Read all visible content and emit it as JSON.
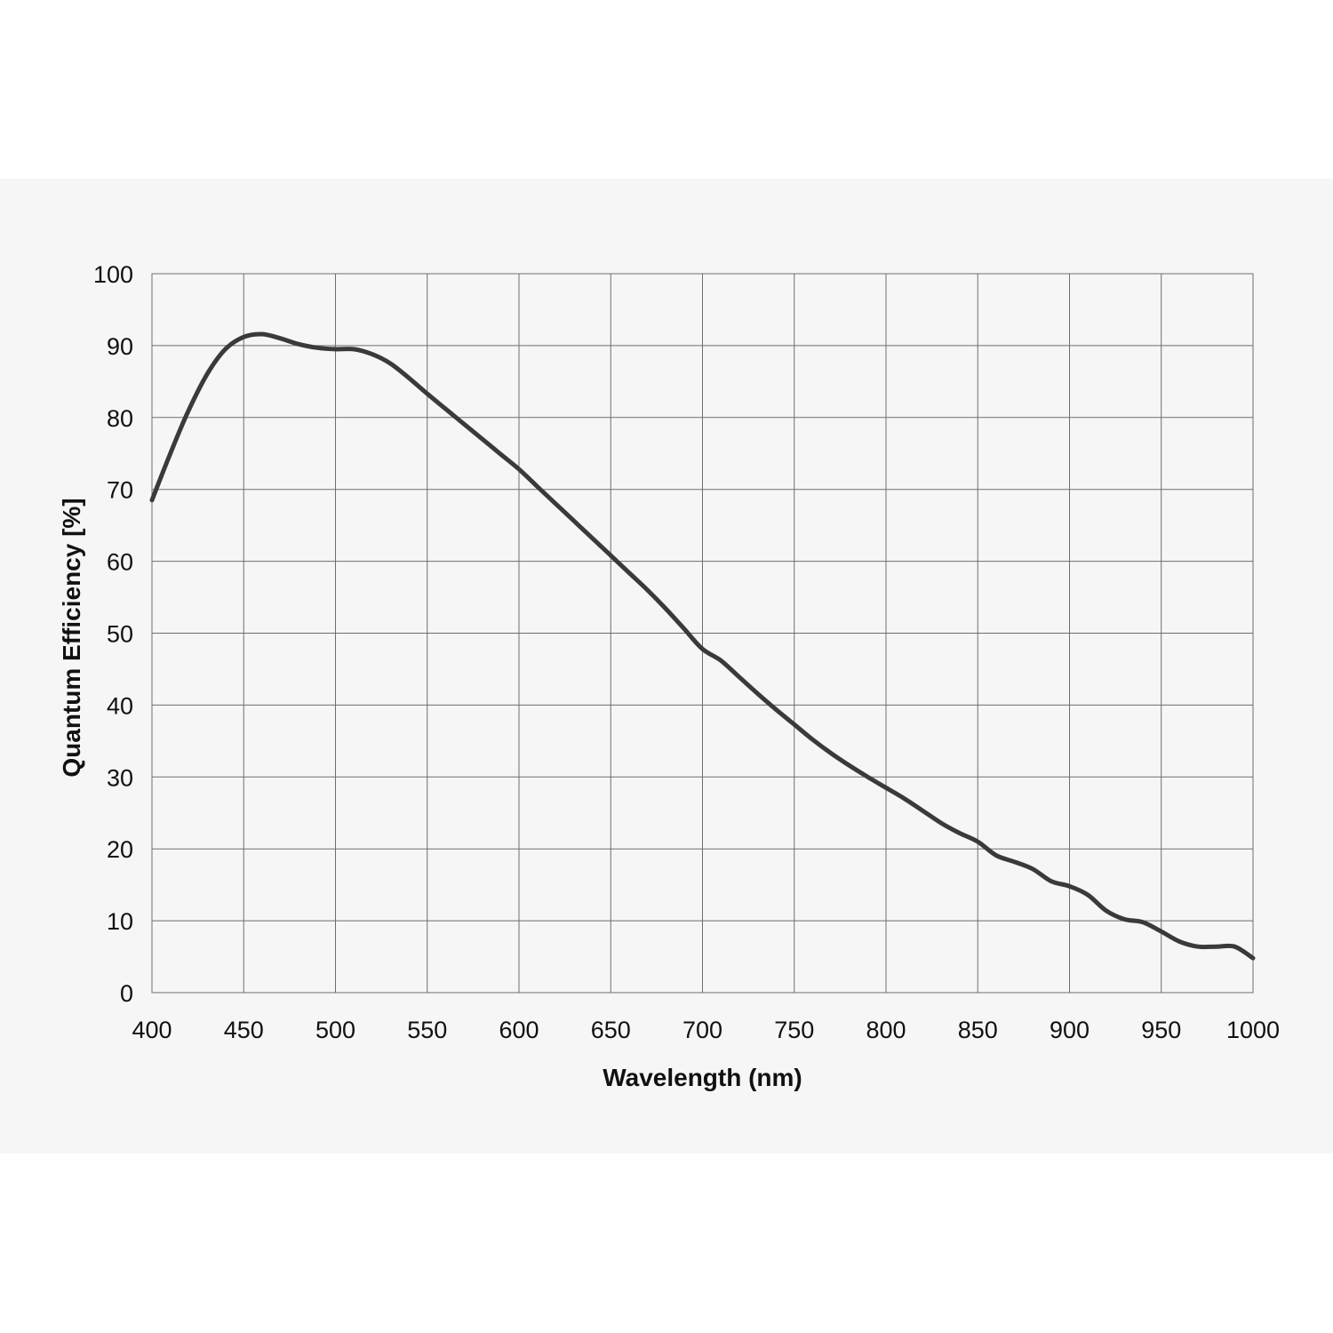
{
  "chart_data": {
    "type": "line",
    "xlabel": "Wavelength (nm)",
    "ylabel": "Quantum Efficiency [%]",
    "xlim": [
      400,
      1000
    ],
    "ylim": [
      0,
      100
    ],
    "x_ticks": [
      "400",
      "450",
      "500",
      "550",
      "600",
      "650",
      "700",
      "750",
      "800",
      "850",
      "900",
      "950",
      "1000"
    ],
    "y_ticks": [
      "0",
      "10",
      "20",
      "30",
      "40",
      "50",
      "60",
      "70",
      "80",
      "90",
      "100"
    ],
    "grid": true,
    "legend": "none",
    "line_color": "#3a3a3a",
    "series": [
      {
        "x": [
          400,
          410,
          420,
          430,
          440,
          450,
          460,
          470,
          480,
          490,
          500,
          510,
          520,
          530,
          540,
          550,
          560,
          570,
          580,
          590,
          600,
          610,
          620,
          630,
          640,
          650,
          660,
          670,
          680,
          690,
          700,
          710,
          720,
          730,
          740,
          750,
          760,
          770,
          780,
          790,
          800,
          810,
          820,
          830,
          840,
          850,
          860,
          870,
          880,
          890,
          900,
          910,
          920,
          930,
          940,
          950,
          960,
          970,
          980,
          990,
          1000
        ],
        "y": [
          68.5,
          75,
          81,
          86,
          89.5,
          91.2,
          91.6,
          91,
          90.2,
          89.7,
          89.5,
          89.5,
          88.8,
          87.5,
          85.5,
          83.3,
          81.2,
          79.1,
          77,
          74.9,
          72.8,
          70.4,
          68,
          65.6,
          63.2,
          60.8,
          58.4,
          56,
          53.4,
          50.6,
          47.8,
          46.2,
          43.9,
          41.6,
          39.4,
          37.3,
          35.2,
          33.3,
          31.6,
          30,
          28.5,
          27,
          25.3,
          23.6,
          22.2,
          21,
          19.1,
          18.2,
          17.2,
          15.5,
          14.8,
          13.6,
          11.4,
          10.2,
          9.8,
          8.5,
          7.1,
          6.4,
          6.4,
          6.4,
          4.8
        ]
      }
    ]
  }
}
